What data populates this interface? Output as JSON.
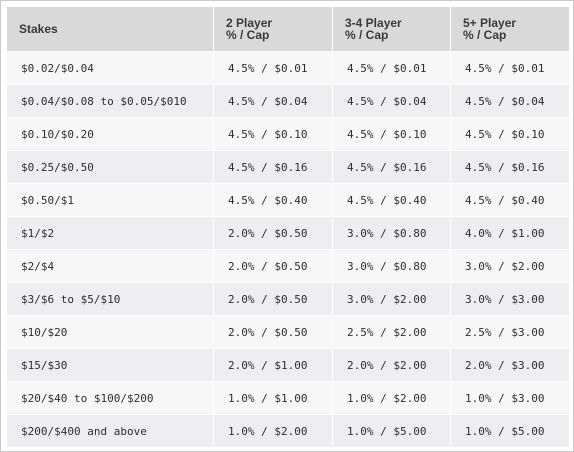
{
  "headers": [
    {
      "line1": "Stakes",
      "line2": ""
    },
    {
      "line1": "2 Player",
      "line2": "% / Cap"
    },
    {
      "line1": "3-4 Player",
      "line2": "% / Cap"
    },
    {
      "line1": "5+ Player",
      "line2": "% / Cap"
    }
  ],
  "rows": [
    {
      "stakes": "$0.02/$0.04",
      "p2": "4.5% / $0.01",
      "p34": "4.5% / $0.01",
      "p5": "4.5% / $0.01"
    },
    {
      "stakes": "$0.04/$0.08 to $0.05/$010",
      "p2": "4.5% / $0.04",
      "p34": "4.5% / $0.04",
      "p5": "4.5% / $0.04"
    },
    {
      "stakes": "$0.10/$0.20",
      "p2": "4.5% / $0.10",
      "p34": "4.5% / $0.10",
      "p5": "4.5% / $0.10"
    },
    {
      "stakes": "$0.25/$0.50",
      "p2": "4.5% / $0.16",
      "p34": "4.5% / $0.16",
      "p5": "4.5% / $0.16"
    },
    {
      "stakes": "$0.50/$1",
      "p2": "4.5% / $0.40",
      "p34": "4.5% / $0.40",
      "p5": "4.5% / $0.40"
    },
    {
      "stakes": "$1/$2",
      "p2": "2.0% / $0.50",
      "p34": "3.0% / $0.80",
      "p5": "4.0% / $1.00"
    },
    {
      "stakes": "$2/$4",
      "p2": "2.0% / $0.50",
      "p34": "3.0% / $0.80",
      "p5": "3.0% / $2.00"
    },
    {
      "stakes": "$3/$6 to $5/$10",
      "p2": "2.0% / $0.50",
      "p34": "3.0% / $2.00",
      "p5": "3.0% / $3.00"
    },
    {
      "stakes": "$10/$20",
      "p2": "2.0% / $0.50",
      "p34": "2.5% / $2.00",
      "p5": "2.5% / $3.00"
    },
    {
      "stakes": "$15/$30",
      "p2": "2.0% / $1.00",
      "p34": "2.0% / $2.00",
      "p5": "2.0% / $3.00"
    },
    {
      "stakes": "$20/$40 to $100/$200",
      "p2": "1.0% / $1.00",
      "p34": "1.0% / $2.00",
      "p5": "1.0% / $3.00"
    },
    {
      "stakes": "$200/$400 and above",
      "p2": "1.0% / $2.00",
      "p34": "1.0% / $5.00",
      "p5": "1.0% / $5.00"
    }
  ],
  "colors": {
    "header_bg": "#d9d9d9",
    "row_odd_bg": "#f8f7f8",
    "row_even_bg": "#eeedef",
    "border": "#c9c9c9"
  }
}
